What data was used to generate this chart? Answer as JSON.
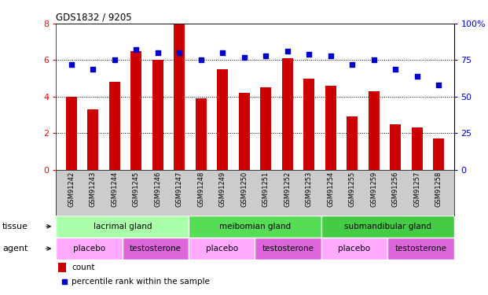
{
  "title": "GDS1832 / 9205",
  "samples": [
    "GSM91242",
    "GSM91243",
    "GSM91244",
    "GSM91245",
    "GSM91246",
    "GSM91247",
    "GSM91248",
    "GSM91249",
    "GSM91250",
    "GSM91251",
    "GSM91252",
    "GSM91253",
    "GSM91254",
    "GSM91255",
    "GSM91259",
    "GSM91256",
    "GSM91257",
    "GSM91258"
  ],
  "counts": [
    4.0,
    3.3,
    4.8,
    6.5,
    6.0,
    8.0,
    3.9,
    5.5,
    4.2,
    4.5,
    6.1,
    5.0,
    4.6,
    2.9,
    4.3,
    2.5,
    2.3,
    1.7
  ],
  "percentiles": [
    72,
    69,
    75,
    82,
    80,
    80,
    75,
    80,
    77,
    78,
    81,
    79,
    78,
    72,
    75,
    69,
    64,
    58
  ],
  "ylim_left": [
    0,
    8
  ],
  "ylim_right": [
    0,
    100
  ],
  "yticks_left": [
    0,
    2,
    4,
    6,
    8
  ],
  "yticks_right": [
    0,
    25,
    50,
    75,
    100
  ],
  "bar_color": "#cc0000",
  "dot_color": "#0000cc",
  "tissue_groups": [
    {
      "label": "lacrimal gland",
      "start": 0,
      "end": 6,
      "color": "#aaffaa"
    },
    {
      "label": "meibomian gland",
      "start": 6,
      "end": 12,
      "color": "#55dd55"
    },
    {
      "label": "submandibular gland",
      "start": 12,
      "end": 18,
      "color": "#44cc44"
    }
  ],
  "agent_groups": [
    {
      "label": "placebo",
      "start": 0,
      "end": 3,
      "color": "#ffaaff"
    },
    {
      "label": "testosterone",
      "start": 3,
      "end": 6,
      "color": "#dd66dd"
    },
    {
      "label": "placebo",
      "start": 6,
      "end": 9,
      "color": "#ffaaff"
    },
    {
      "label": "testosterone",
      "start": 9,
      "end": 12,
      "color": "#dd66dd"
    },
    {
      "label": "placebo",
      "start": 12,
      "end": 15,
      "color": "#ffaaff"
    },
    {
      "label": "testosterone",
      "start": 15,
      "end": 18,
      "color": "#dd66dd"
    }
  ],
  "legend_count_color": "#cc0000",
  "legend_dot_color": "#0000cc",
  "tissue_label": "tissue",
  "agent_label": "agent",
  "bar_width": 0.5,
  "dot_size": 25,
  "xticklabel_bg": "#cccccc",
  "xticklabel_fontsize": 6.0,
  "label_fontsize": 8,
  "annotation_fontsize": 7.5
}
